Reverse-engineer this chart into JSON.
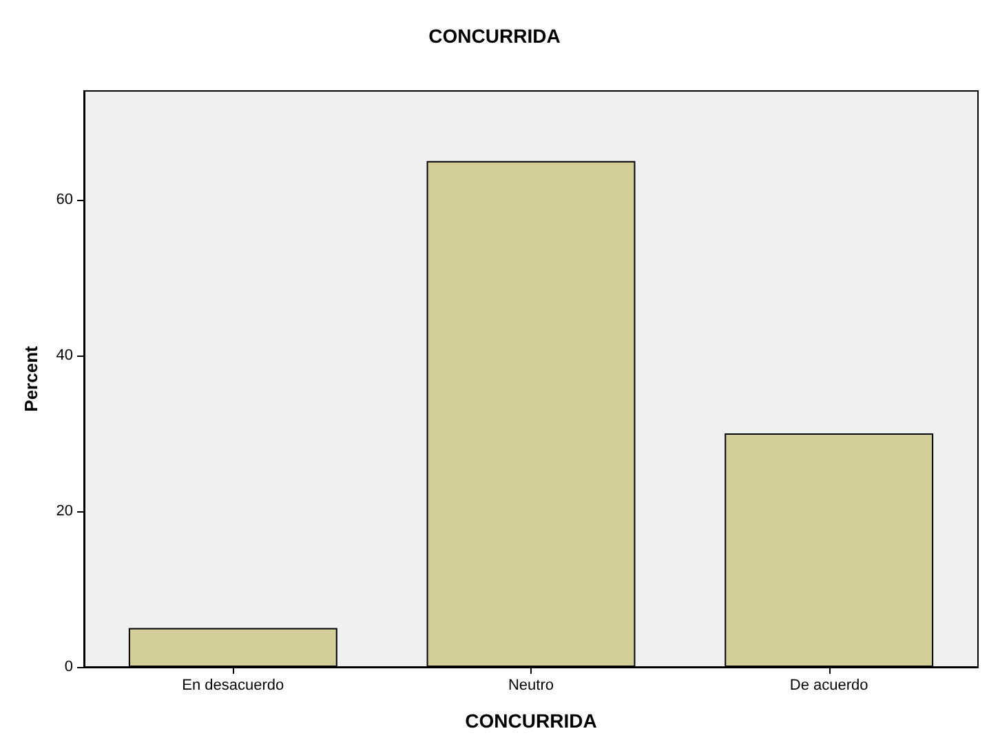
{
  "chart_data": {
    "type": "bar",
    "title": "CONCURRIDA",
    "xlabel": "CONCURRIDA",
    "ylabel": "Percent",
    "categories": [
      "En desacuerdo",
      "Neutro",
      "De acuerdo"
    ],
    "values": [
      5,
      65,
      30
    ],
    "color": "#d3ce97",
    "ylim": [
      0,
      74
    ],
    "yticks": [
      0,
      20,
      40,
      60
    ],
    "grid": false
  }
}
